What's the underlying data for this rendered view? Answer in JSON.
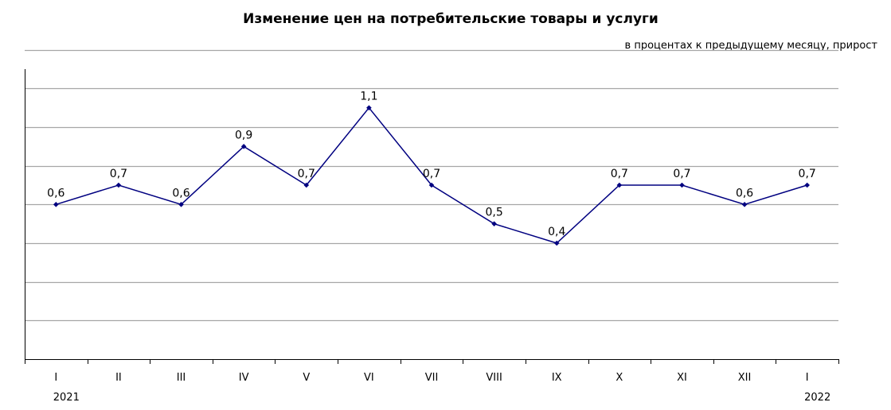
{
  "chart_data": {
    "type": "line",
    "title": "Изменение цен на потребительские товары и услуги",
    "subtitle": "в процентах к предыдущему месяцу, прирост",
    "categories": [
      "I",
      "II",
      "III",
      "IV",
      "V",
      "VI",
      "VII",
      "VIII",
      "IX",
      "X",
      "XI",
      "XII",
      "I"
    ],
    "years": [
      {
        "label": "2021",
        "category_index": 0
      },
      {
        "label": "2022",
        "category_index": 12
      }
    ],
    "series": [
      {
        "values": [
          0.6,
          0.7,
          0.6,
          0.9,
          0.7,
          1.1,
          0.7,
          0.5,
          0.4,
          0.7,
          0.7,
          0.6,
          0.7
        ],
        "labels": [
          "0,6",
          "0,7",
          "0,6",
          "0,9",
          "0,7",
          "1,1",
          "0,7",
          "0,5",
          "0,4",
          "0,7",
          "0,7",
          "0,6",
          "0,7"
        ],
        "color": "#000080"
      }
    ],
    "ylim": [
      -0.2,
      1.3
    ],
    "ygrid_step": 0.2,
    "grid": true,
    "gridline_color": "#a6a6a6",
    "legend": "none"
  }
}
